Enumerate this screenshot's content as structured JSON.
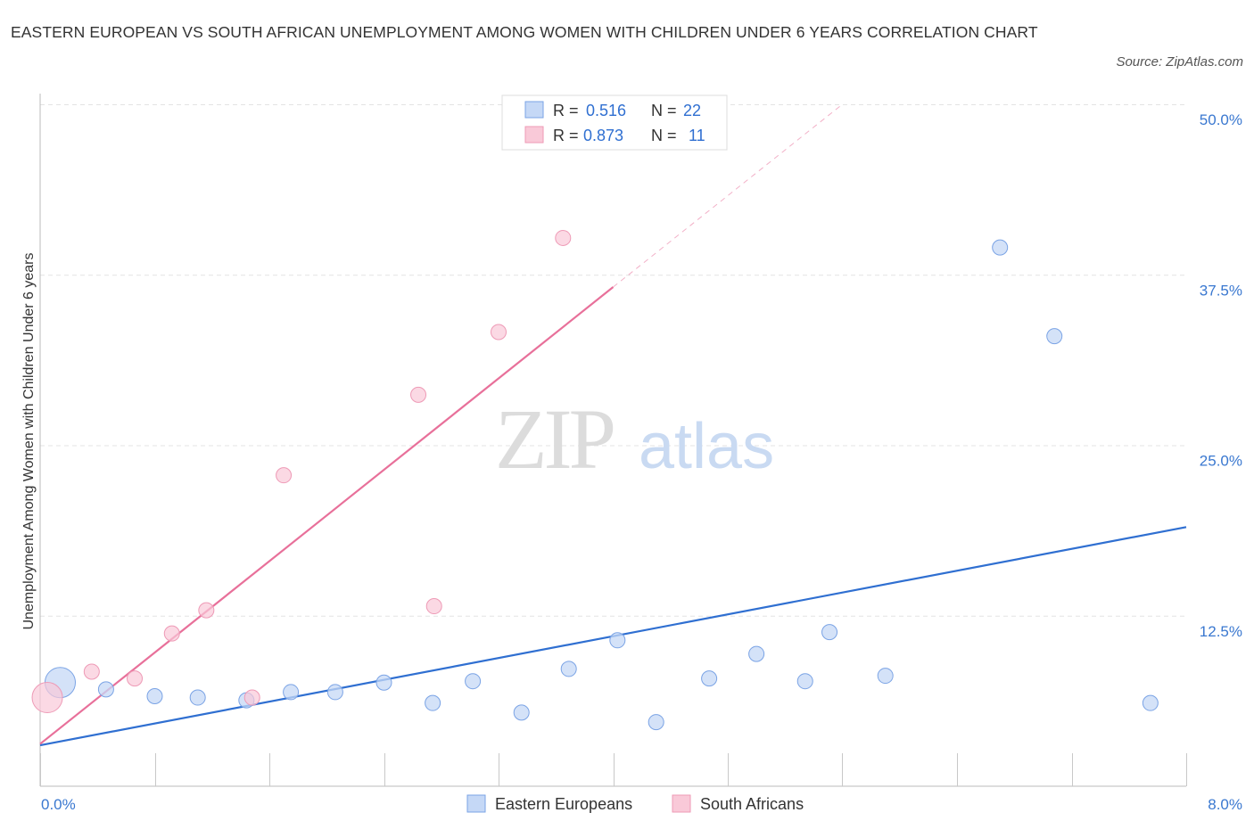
{
  "header": {
    "title": "EASTERN EUROPEAN VS SOUTH AFRICAN UNEMPLOYMENT AMONG WOMEN WITH CHILDREN UNDER 6 YEARS CORRELATION CHART",
    "source": "Source: ZipAtlas.com"
  },
  "watermark": {
    "zip": "ZIP",
    "atlas": "atlas"
  },
  "chart_data": {
    "type": "scatter",
    "title": "EASTERN EUROPEAN VS SOUTH AFRICAN UNEMPLOYMENT AMONG WOMEN WITH CHILDREN UNDER 6 YEARS CORRELATION CHART",
    "xlabel": "",
    "ylabel": "Unemployment Among Women with Children Under 6 years",
    "xlim": [
      0,
      8
    ],
    "ylim": [
      0,
      50
    ],
    "x_tick_labels": [
      "0.0%",
      "8.0%"
    ],
    "y_ticks": [
      12.5,
      25.0,
      37.5,
      50.0
    ],
    "y_tick_labels": [
      "12.5%",
      "25.0%",
      "37.5%",
      "50.0%"
    ],
    "grid": true,
    "legend_position": "top-center",
    "stats": [
      {
        "r_label": "R =",
        "r_value": "0.516",
        "n_label": "N =",
        "n_value": "22"
      },
      {
        "r_label": "R =",
        "r_value": "0.873",
        "n_label": "N =",
        "n_value": "11"
      }
    ],
    "series": [
      {
        "name": "Eastern Europeans",
        "color": "#6fa0e8",
        "line_color": "#2f6fd1",
        "points": [
          {
            "x": 0.14,
            "y": 7.6,
            "size": "large"
          },
          {
            "x": 0.46,
            "y": 7.1
          },
          {
            "x": 0.8,
            "y": 6.6
          },
          {
            "x": 1.1,
            "y": 6.5
          },
          {
            "x": 1.44,
            "y": 6.3
          },
          {
            "x": 1.75,
            "y": 6.9
          },
          {
            "x": 2.06,
            "y": 6.9
          },
          {
            "x": 2.4,
            "y": 7.6
          },
          {
            "x": 2.74,
            "y": 6.1
          },
          {
            "x": 3.02,
            "y": 7.7
          },
          {
            "x": 3.36,
            "y": 5.4
          },
          {
            "x": 3.69,
            "y": 8.6
          },
          {
            "x": 4.03,
            "y": 10.7
          },
          {
            "x": 4.3,
            "y": 4.7
          },
          {
            "x": 4.67,
            "y": 7.9
          },
          {
            "x": 5.0,
            "y": 9.7
          },
          {
            "x": 5.34,
            "y": 7.7
          },
          {
            "x": 5.51,
            "y": 11.3
          },
          {
            "x": 5.9,
            "y": 8.1
          },
          {
            "x": 6.7,
            "y": 39.5
          },
          {
            "x": 7.08,
            "y": 33.0
          },
          {
            "x": 7.75,
            "y": 6.1
          }
        ],
        "trend": {
          "x": [
            0.0,
            8.0
          ],
          "y": [
            3.0,
            19.0
          ]
        }
      },
      {
        "name": "South Africans",
        "color": "#f2a6bf",
        "line_color": "#e8709a",
        "points": [
          {
            "x": 0.05,
            "y": 6.5,
            "size": "large"
          },
          {
            "x": 0.36,
            "y": 8.4
          },
          {
            "x": 0.66,
            "y": 7.9
          },
          {
            "x": 0.92,
            "y": 11.2
          },
          {
            "x": 1.16,
            "y": 12.9
          },
          {
            "x": 1.48,
            "y": 6.5
          },
          {
            "x": 1.7,
            "y": 22.8
          },
          {
            "x": 2.64,
            "y": 28.7
          },
          {
            "x": 2.75,
            "y": 13.2
          },
          {
            "x": 3.2,
            "y": 33.3
          },
          {
            "x": 3.65,
            "y": 40.2
          }
        ],
        "trend": {
          "x": [
            0.0,
            4.0
          ],
          "y": [
            3.1,
            36.6
          ]
        },
        "trend_extension": {
          "x": [
            4.0,
            5.6
          ],
          "y": [
            36.6,
            50.0
          ]
        }
      }
    ]
  }
}
